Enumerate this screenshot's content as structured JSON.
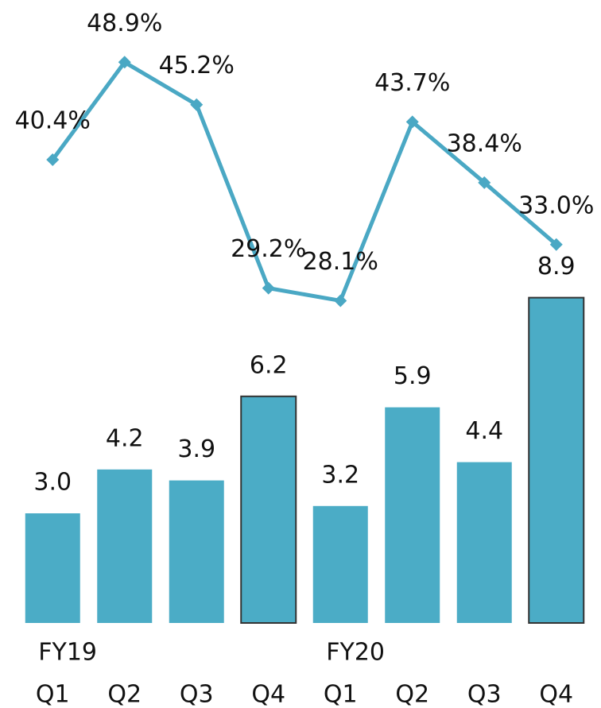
{
  "chart_data": {
    "type": "bar-line",
    "categories": [
      "Q1",
      "Q2",
      "Q3",
      "Q4",
      "Q1",
      "Q2",
      "Q3",
      "Q4"
    ],
    "group_labels": [
      "FY19",
      null,
      null,
      null,
      "FY20",
      null,
      null,
      null
    ],
    "series": [
      {
        "type": "bar",
        "color": "#4bacc6",
        "values": [
          3.0,
          4.2,
          3.9,
          6.2,
          3.2,
          5.9,
          4.4,
          8.9
        ],
        "value_labels": [
          "3.0",
          "4.2",
          "3.9",
          "6.2",
          "3.2",
          "5.9",
          "4.4",
          "8.9"
        ],
        "highlight": [
          3,
          7
        ],
        "highlight_edge_color": "#333333"
      },
      {
        "type": "line",
        "axis": "y2",
        "color": "#4aa8c4",
        "values": [
          40.4,
          48.9,
          45.2,
          29.2,
          28.1,
          43.7,
          38.4,
          33.0
        ],
        "value_labels": [
          "40.4%",
          "48.9%",
          "45.2%",
          "29.2%",
          "28.1%",
          "43.7%",
          "38.4%",
          "33.0%"
        ]
      }
    ],
    "ylim": [
      0,
      16
    ],
    "y2lim": [
      0,
      51
    ]
  }
}
